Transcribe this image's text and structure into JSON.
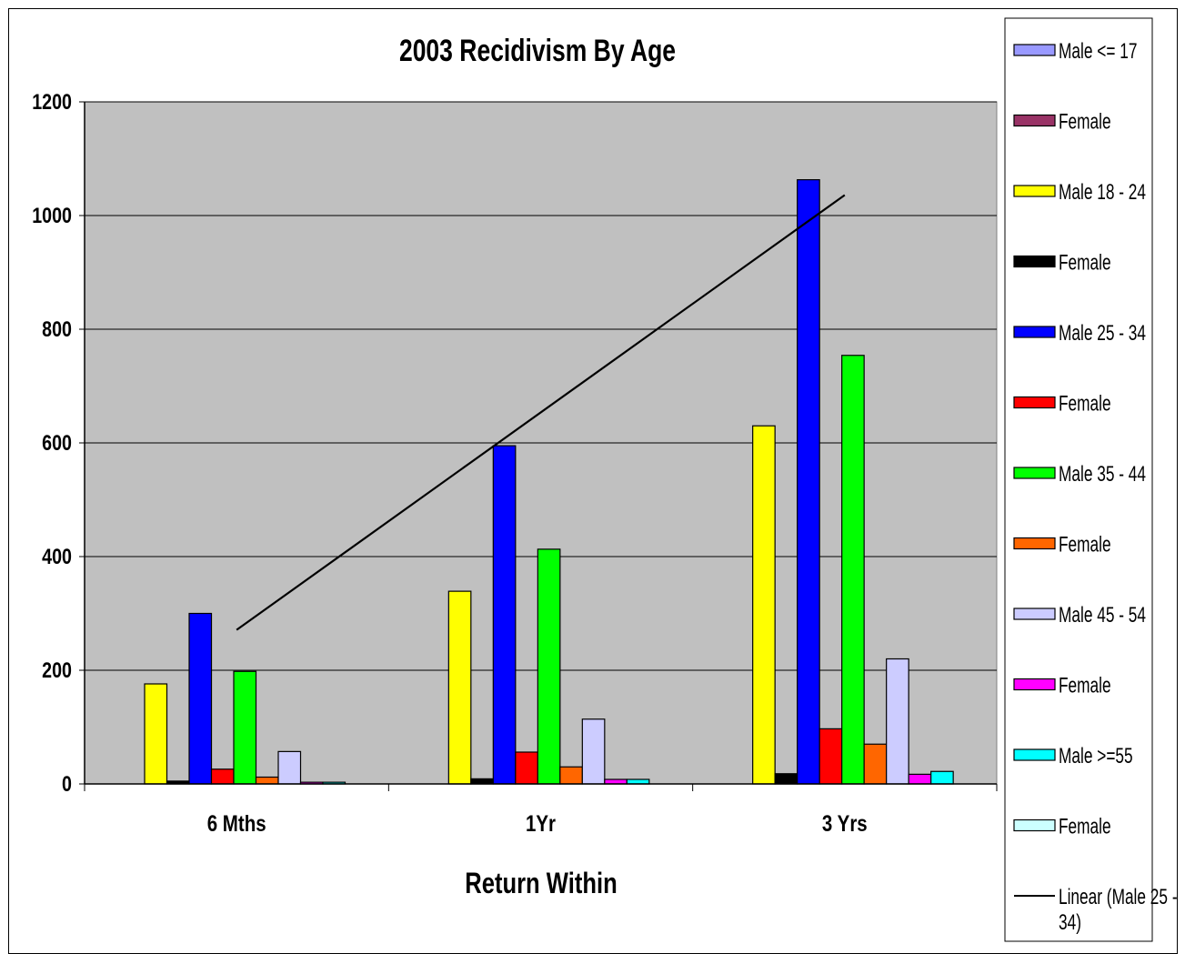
{
  "chart_data": {
    "type": "bar",
    "title": "2003 Recidivism By Age",
    "xlabel": "Return Within",
    "ylabel": "",
    "categories": [
      "6 Mths",
      "1Yr",
      "3 Yrs"
    ],
    "ylim": [
      0,
      1200
    ],
    "yticks": [
      0,
      200,
      400,
      600,
      800,
      1000,
      1200
    ],
    "grid": true,
    "plot_background": "#c0c0c0",
    "legend_position": "right",
    "series": [
      {
        "name": "Male <= 17",
        "color": "#9999ff",
        "values": [
          0,
          0,
          0
        ]
      },
      {
        "name": "Female",
        "color": "#993366",
        "values": [
          0,
          0,
          0
        ]
      },
      {
        "name": "Male 18 - 24",
        "color": "#ffff00",
        "values": [
          176,
          339,
          630
        ]
      },
      {
        "name": "Female",
        "color": "#000000",
        "values": [
          5,
          9,
          18
        ]
      },
      {
        "name": "Male 25 - 34",
        "color": "#0000ff",
        "values": [
          300,
          595,
          1063
        ]
      },
      {
        "name": "Female",
        "color": "#ff0000",
        "values": [
          26,
          56,
          97
        ]
      },
      {
        "name": "Male 35 - 44",
        "color": "#00ff00",
        "values": [
          198,
          413,
          754
        ]
      },
      {
        "name": "Female",
        "color": "#ff6600",
        "values": [
          12,
          30,
          70
        ]
      },
      {
        "name": "Male 45 - 54",
        "color": "#ccccff",
        "values": [
          57,
          114,
          220
        ]
      },
      {
        "name": "Female",
        "color": "#ff00ff",
        "values": [
          3,
          8,
          17
        ]
      },
      {
        "name": "Male >=55",
        "color": "#00ffff",
        "values": [
          3,
          8,
          22
        ]
      },
      {
        "name": "Female",
        "color": "#ccffff",
        "values": [
          0,
          0,
          0
        ]
      }
    ],
    "trendline": {
      "name": "Linear (Male 25 - 34)",
      "of_series": "Male 25 - 34",
      "type": "linear",
      "color": "#000000",
      "start": 271,
      "end": 1036
    }
  }
}
